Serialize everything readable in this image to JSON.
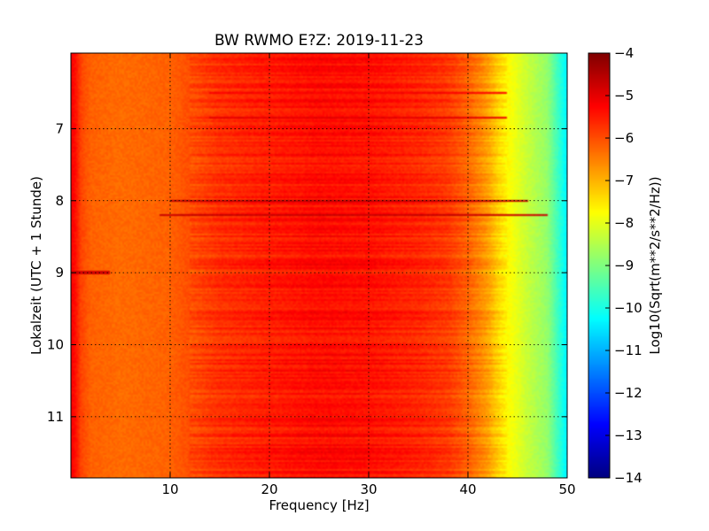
{
  "chart_data": {
    "type": "heatmap",
    "title": "BW RWMO E?Z: 2019-11-23",
    "xlabel": "Frequency [Hz]",
    "ylabel": "Lokalzeit (UTC + 1 Stunde)",
    "xlim": [
      0,
      50
    ],
    "ylim": [
      5.95,
      11.85
    ],
    "y_inverted": true,
    "x_ticks": [
      10,
      20,
      30,
      40,
      50
    ],
    "y_ticks": [
      7,
      8,
      9,
      10,
      11
    ],
    "grid": true,
    "colormap": "jet",
    "colorbar": {
      "label": "Log10(Sqrt(m**2/s**2/Hz))",
      "range": [
        -14,
        -4
      ],
      "ticks": [
        -4,
        -5,
        -6,
        -7,
        -8,
        -9,
        -10,
        -11,
        -12,
        -13,
        -14
      ]
    },
    "spectral_profile": {
      "frequency_hz": [
        0,
        0.5,
        1,
        2,
        5,
        10,
        12,
        15,
        20,
        25,
        30,
        35,
        38,
        40,
        42,
        43,
        44,
        45,
        46,
        48,
        50
      ],
      "log10_amplitude": [
        -5.2,
        -5.4,
        -5.9,
        -6.2,
        -6.3,
        -6.2,
        -6.0,
        -5.7,
        -5.5,
        -5.35,
        -5.4,
        -5.6,
        -5.8,
        -6.2,
        -6.8,
        -7.3,
        -7.7,
        -8.0,
        -8.3,
        -8.8,
        -10.4
      ]
    },
    "notable_events": [
      {
        "time_h": 8.0,
        "freq_range_hz": [
          10,
          46
        ],
        "log10_amplitude": -4.6
      },
      {
        "time_h": 8.2,
        "freq_range_hz": [
          9,
          48
        ],
        "log10_amplitude": -4.7
      },
      {
        "time_h": 9.0,
        "freq_range_hz": [
          0,
          4
        ],
        "log10_amplitude": -4.8
      },
      {
        "time_h": 6.85,
        "freq_range_hz": [
          14,
          44
        ],
        "log10_amplitude": -5.0
      },
      {
        "time_h": 6.5,
        "freq_range_hz": [
          14,
          44
        ],
        "log10_amplitude": -5.2
      }
    ]
  }
}
